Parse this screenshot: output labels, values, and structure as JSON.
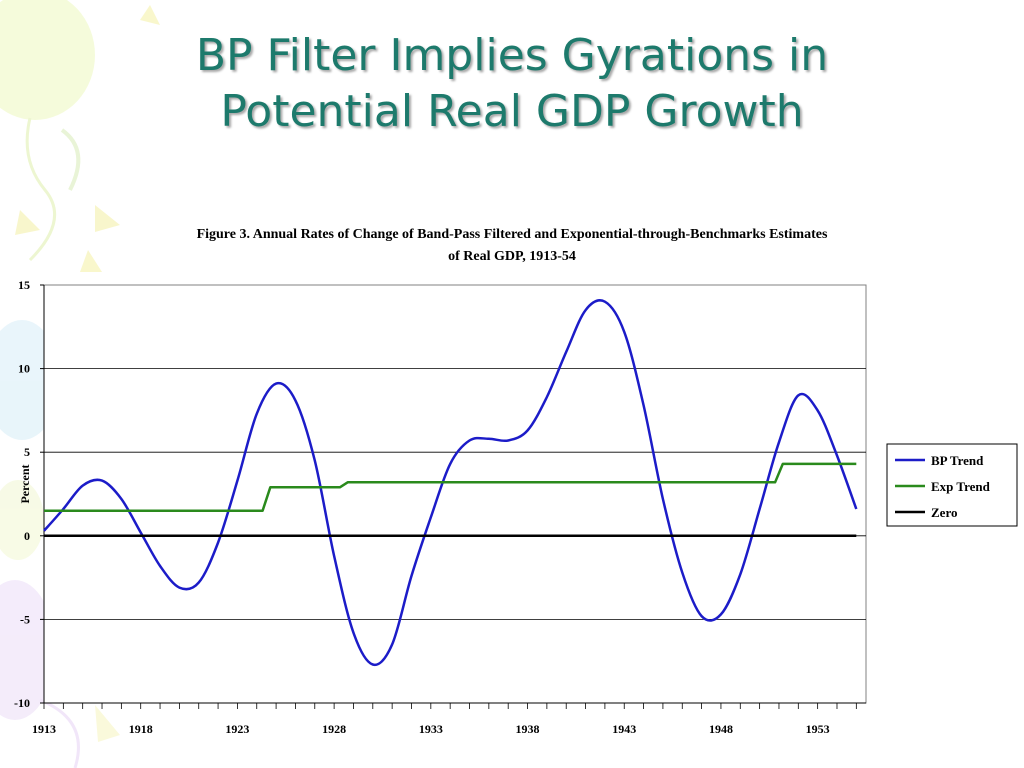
{
  "slide": {
    "title_line1": "BP Filter Implies Gyrations in",
    "title_line2": "Potential Real GDP Growth",
    "title_color": "#1d7a6c"
  },
  "chart_data": {
    "type": "line",
    "title_line1": "Figure 3.  Annual Rates of Change of Band-Pass Filtered and Exponential-through-Benchmarks Estimates",
    "title_line2": "of Real GDP, 1913-54",
    "xlabel": "",
    "ylabel": "Percent",
    "xlim": [
      1913,
      1955.5
    ],
    "ylim": [
      -10,
      15
    ],
    "yticks": [
      15,
      10,
      5,
      0,
      -5,
      -10
    ],
    "xticks": [
      1913,
      1918,
      1923,
      1928,
      1933,
      1938,
      1943,
      1948,
      1953
    ],
    "grid": "horizontal",
    "legend_position": "right",
    "series": [
      {
        "name": "BP Trend",
        "color": "#1c1cc8",
        "x": [
          1913,
          1914,
          1915,
          1916,
          1917,
          1918,
          1919,
          1920,
          1921,
          1922,
          1923,
          1924,
          1925,
          1926,
          1927,
          1928,
          1929,
          1930,
          1931,
          1932,
          1933,
          1934,
          1935,
          1936,
          1937,
          1938,
          1939,
          1940,
          1941,
          1942,
          1943,
          1944,
          1945,
          1946,
          1947,
          1948,
          1949,
          1950,
          1951,
          1952,
          1953,
          1954,
          1955
        ],
        "y": [
          0.3,
          1.6,
          3.0,
          3.3,
          2.2,
          0.2,
          -1.8,
          -3.1,
          -2.8,
          -0.4,
          3.3,
          7.3,
          9.1,
          8.1,
          4.5,
          -1.2,
          -5.8,
          -7.7,
          -6.5,
          -2.4,
          1.1,
          4.3,
          5.7,
          5.8,
          5.7,
          6.3,
          8.3,
          11.0,
          13.5,
          14.0,
          12.2,
          7.8,
          2.2,
          -2.2,
          -4.8,
          -4.7,
          -2.3,
          1.6,
          5.6,
          8.4,
          7.5,
          4.8,
          1.6
        ]
      },
      {
        "name": "Exp Trend",
        "color": "#2a8a1c",
        "x": [
          1913,
          1924.3,
          1924.7,
          1928.3,
          1928.7,
          1950.8,
          1951.2,
          1955
        ],
        "y": [
          1.5,
          1.5,
          2.9,
          2.9,
          3.2,
          3.2,
          4.3,
          4.3
        ]
      },
      {
        "name": "Zero",
        "color": "#000000",
        "x": [
          1913,
          1955
        ],
        "y": [
          0,
          0
        ]
      }
    ]
  }
}
